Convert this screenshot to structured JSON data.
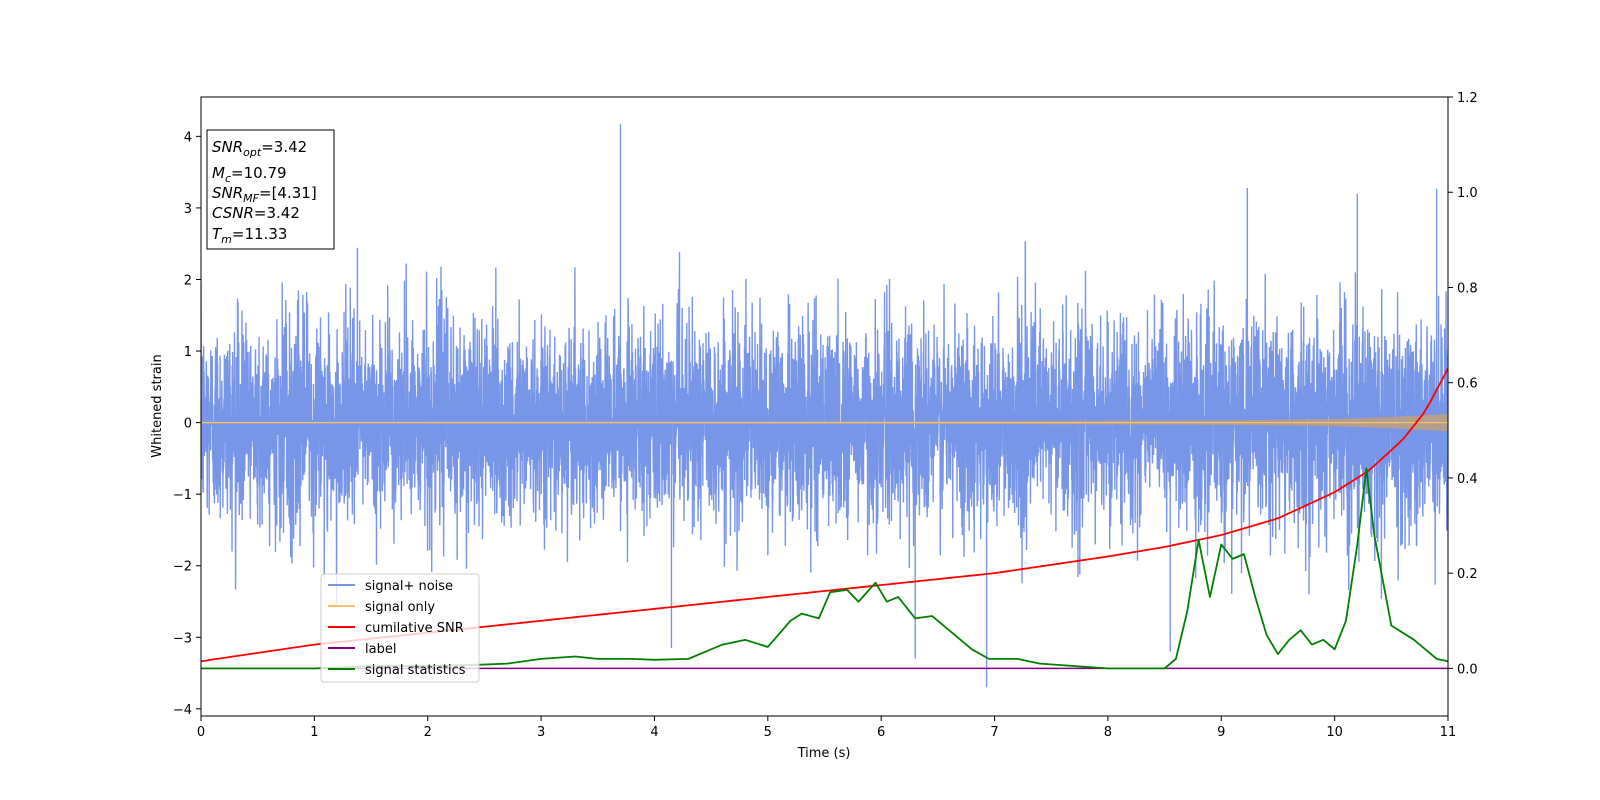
{
  "chart_data": {
    "type": "line",
    "xlabel": "Time (s)",
    "ylabel": "Whitened strain",
    "xlim": [
      0,
      11
    ],
    "ylim_left": [
      -4.1,
      4.55
    ],
    "ylim_right": [
      -0.1,
      1.2
    ],
    "xticks": [
      "0",
      "1",
      "2",
      "3",
      "4",
      "5",
      "6",
      "7",
      "8",
      "9",
      "10",
      "11"
    ],
    "yticks_left": [
      "−4",
      "−3",
      "−2",
      "−1",
      "0",
      "1",
      "2",
      "3",
      "4"
    ],
    "yticks_left_values": [
      -4,
      -3,
      -2,
      -1,
      0,
      1,
      2,
      3,
      4
    ],
    "yticks_right": [
      "0.0",
      "0.2",
      "0.4",
      "0.6",
      "0.8",
      "1.0",
      "1.2"
    ],
    "yticks_right_values": [
      0.0,
      0.2,
      0.4,
      0.6,
      0.8,
      1.0,
      1.2
    ],
    "info_box": {
      "snr_opt": {
        "base": "SNR",
        "sub": "opt",
        "value": "=3.42"
      },
      "mc": {
        "base": "M",
        "sub": "c",
        "value": "=10.79"
      },
      "snr_mf": {
        "base": "SNR",
        "sub": "MF",
        "value": "=[4.31]"
      },
      "csnr": {
        "base": "CSNR",
        "sub": "",
        "value": "=3.42"
      },
      "tm": {
        "base": "T",
        "sub": "m",
        "value": "=11.33"
      }
    },
    "series": [
      {
        "name": "signal+ noise",
        "axis": "left",
        "color": "#7896e8",
        "envelope": {
          "upper_typical": 2.0,
          "lower_typical": -2.0,
          "sigma": 0.7
        },
        "spikes": [
          [
            3.7,
            4.17
          ],
          [
            10.2,
            3.2
          ],
          [
            9.23,
            3.28
          ],
          [
            10.9,
            3.27
          ],
          [
            6.93,
            -3.7
          ],
          [
            4.15,
            -3.15
          ],
          [
            6.3,
            -3.3
          ],
          [
            8.55,
            -3.2
          ]
        ]
      },
      {
        "name": "signal only",
        "axis": "left",
        "color": "#f5c16c",
        "amplitude": {
          "x": [
            0,
            6,
            9,
            10,
            10.5,
            11
          ],
          "y": [
            0.01,
            0.015,
            0.03,
            0.05,
            0.08,
            0.12
          ]
        }
      },
      {
        "name": "cumilative SNR",
        "axis": "right",
        "color": "#ff0000",
        "x": [
          0,
          1,
          2,
          3,
          4,
          5,
          6,
          7,
          8,
          8.5,
          9,
          9.5,
          10,
          10.3,
          10.6,
          10.8,
          11
        ],
        "y": [
          0.015,
          0.05,
          0.075,
          0.1,
          0.125,
          0.15,
          0.175,
          0.2,
          0.235,
          0.255,
          0.28,
          0.315,
          0.37,
          0.415,
          0.48,
          0.54,
          0.63
        ]
      },
      {
        "name": "label",
        "axis": "right",
        "color": "#800080",
        "x": [
          0,
          11
        ],
        "y": [
          0,
          0
        ]
      },
      {
        "name": "signal statistics",
        "axis": "right",
        "color": "#008000",
        "x": [
          0,
          0.5,
          1.0,
          1.5,
          2.0,
          2.5,
          2.7,
          3.0,
          3.3,
          3.5,
          3.8,
          4.0,
          4.3,
          4.5,
          4.6,
          4.8,
          5.0,
          5.2,
          5.3,
          5.45,
          5.55,
          5.7,
          5.8,
          5.95,
          6.05,
          6.15,
          6.3,
          6.45,
          6.6,
          6.8,
          6.95,
          7.2,
          7.4,
          7.7,
          8.0,
          8.5,
          8.6,
          8.7,
          8.8,
          8.9,
          9.0,
          9.1,
          9.2,
          9.3,
          9.4,
          9.5,
          9.6,
          9.7,
          9.8,
          9.9,
          10.0,
          10.1,
          10.2,
          10.28,
          10.35,
          10.5,
          10.7,
          10.9,
          11.0
        ],
        "y": [
          0.0,
          0.0,
          0.0,
          0.005,
          0.005,
          0.008,
          0.01,
          0.02,
          0.025,
          0.02,
          0.02,
          0.018,
          0.02,
          0.04,
          0.05,
          0.06,
          0.045,
          0.1,
          0.115,
          0.105,
          0.16,
          0.165,
          0.14,
          0.18,
          0.14,
          0.15,
          0.105,
          0.11,
          0.08,
          0.04,
          0.02,
          0.02,
          0.01,
          0.005,
          0.0,
          0.0,
          0.02,
          0.12,
          0.27,
          0.15,
          0.26,
          0.23,
          0.24,
          0.15,
          0.07,
          0.03,
          0.06,
          0.08,
          0.05,
          0.06,
          0.04,
          0.1,
          0.26,
          0.42,
          0.28,
          0.09,
          0.06,
          0.02,
          0.015
        ]
      }
    ],
    "legend": {
      "placement": "lower-left",
      "entries": [
        "signal+ noise",
        "signal only",
        "cumilative SNR",
        "label",
        "signal statistics"
      ]
    }
  }
}
